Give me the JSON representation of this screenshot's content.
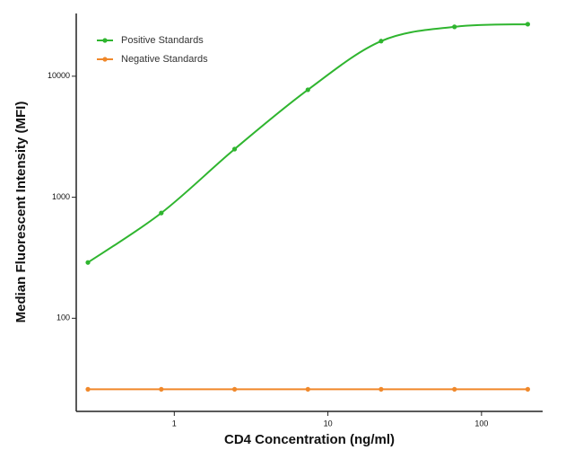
{
  "chart_data": {
    "type": "line",
    "x_label": "CD4 Concentration (ng/ml)",
    "y_label": "Median  Fluorescent Intensity  (MFI)",
    "x": [
      0.274,
      0.823,
      2.47,
      7.41,
      22.2,
      66.7,
      200
    ],
    "series": [
      {
        "name": "Positive Standards",
        "color": "#2fb52f",
        "values": [
          289,
          741,
          2500,
          7730,
          19500,
          25600,
          26900
        ]
      },
      {
        "name": "Negative Standards",
        "color": "#f0882a",
        "values": [
          25.9,
          25.9,
          25.9,
          25.9,
          25.9,
          25.9,
          25.9
        ]
      }
    ],
    "xscale": "log",
    "yscale": "log",
    "xlim": [
      0.23,
      250
    ],
    "ylim": [
      17,
      33000
    ],
    "xticks": [
      1,
      10,
      100
    ],
    "yticks": [
      100,
      1000,
      10000
    ],
    "legend": "upper left"
  }
}
